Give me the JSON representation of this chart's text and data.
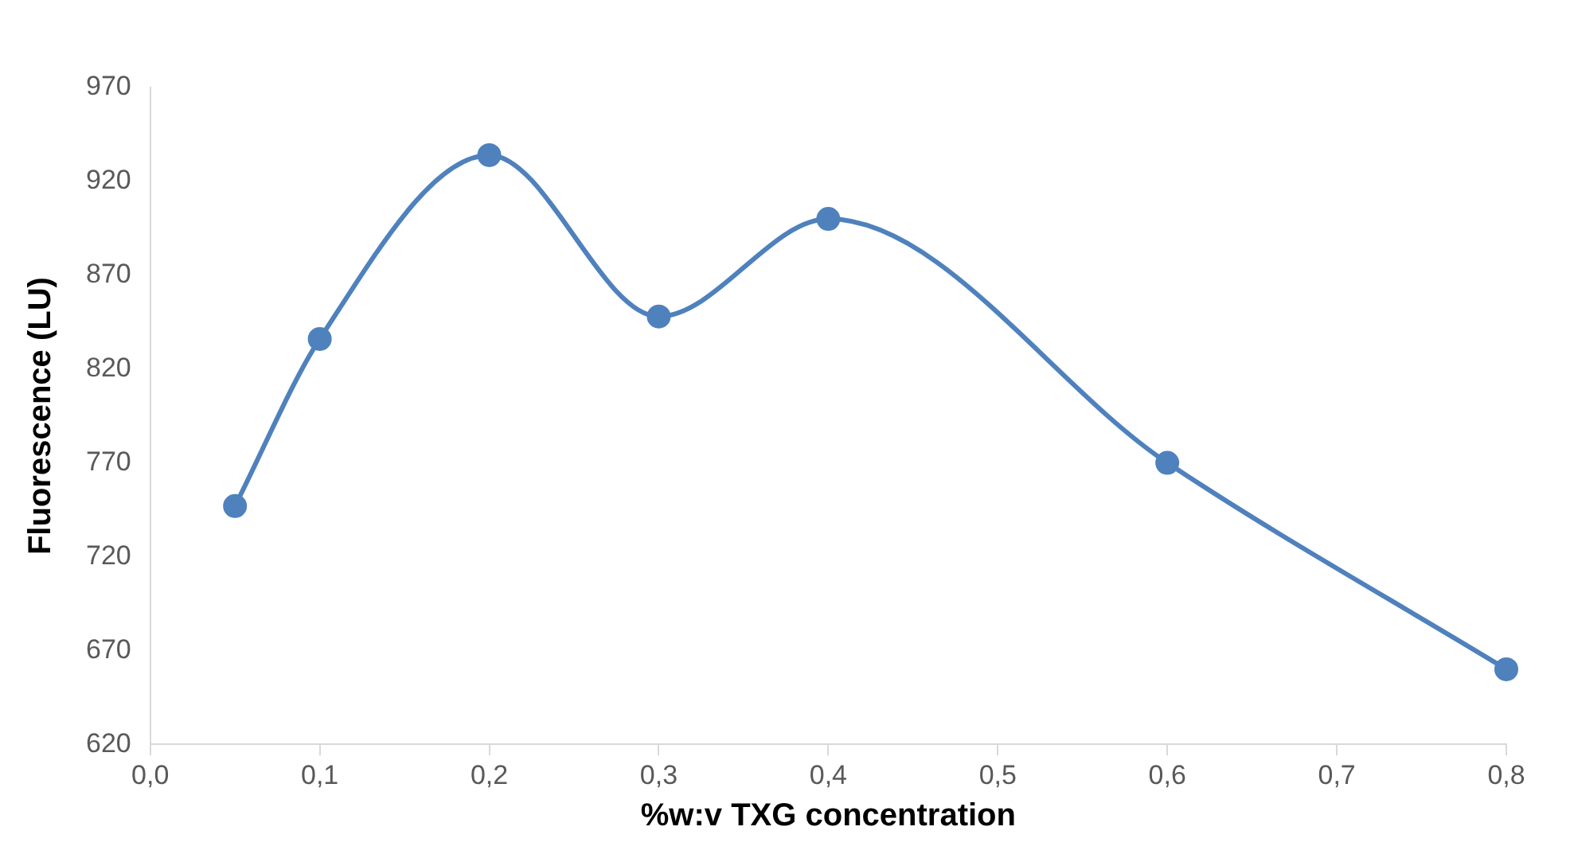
{
  "chart_data": {
    "type": "scatter",
    "xlabel": "%w:v TXG concentration",
    "ylabel": "Fluorescence (LU)",
    "x": [
      0.05,
      0.1,
      0.2,
      0.3,
      0.4,
      0.6,
      0.8
    ],
    "series": [
      {
        "type": "line",
        "color": "#4f81bd",
        "values": [
          747,
          836,
          934,
          848,
          900,
          770,
          660
        ]
      }
    ],
    "marker": "circle",
    "line_style": "solid",
    "grid": false,
    "legend": false,
    "xlim": [
      0,
      0.8
    ],
    "xticks": [
      {
        "value": 0,
        "label": "0,0"
      },
      {
        "value": 0.1,
        "label": "0,1"
      },
      {
        "value": 0.2,
        "label": "0,2"
      },
      {
        "value": 0.3,
        "label": "0,3"
      },
      {
        "value": 0.4,
        "label": "0,4"
      },
      {
        "value": 0.5,
        "label": "0,5"
      },
      {
        "value": 0.6,
        "label": "0,6"
      },
      {
        "value": 0.7,
        "label": "0,7"
      },
      {
        "value": 0.8,
        "label": "0,8"
      }
    ],
    "ylim": [
      620,
      970
    ],
    "yticks": [
      620,
      670,
      720,
      770,
      820,
      870,
      920,
      970
    ]
  }
}
